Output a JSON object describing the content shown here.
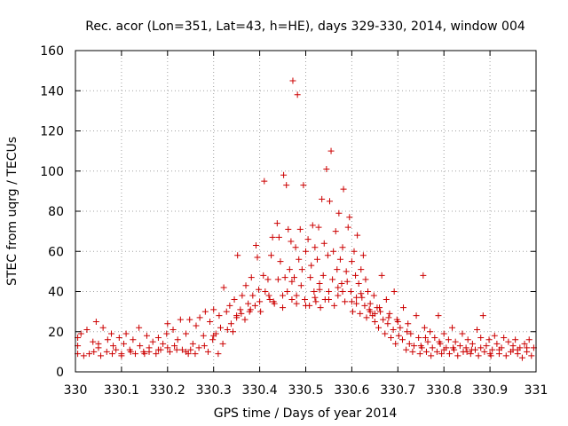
{
  "chart_data": {
    "type": "scatter",
    "title": "Rec. acor (Lon=351, Lat=43, h=HE), days 329-330, 2014, window 004",
    "xlabel": "GPS time / Days of year 2014",
    "ylabel": "STEC from uqrg / TECUs",
    "xlim": [
      330,
      331
    ],
    "ylim": [
      0,
      160
    ],
    "xticks": [
      330,
      330.1,
      330.2,
      330.3,
      330.4,
      330.5,
      330.6,
      330.7,
      330.8,
      330.9,
      331
    ],
    "xtick_labels": [
      "330",
      "330.1",
      "330.2",
      "330.3",
      "330.4",
      "330.5",
      "330.6",
      "330.7",
      "330.8",
      "330.9",
      "331"
    ],
    "yticks": [
      0,
      20,
      40,
      60,
      80,
      100,
      120,
      140,
      160
    ],
    "ytick_labels": [
      "0",
      "20",
      "40",
      "60",
      "80",
      "100",
      "120",
      "140",
      "160"
    ],
    "marker": "+",
    "color": "#cc0000",
    "grid": true,
    "series": [
      {
        "name": "STEC",
        "points": [
          [
            330.005,
            17
          ],
          [
            330.005,
            13
          ],
          [
            330.005,
            9
          ],
          [
            330.012,
            19
          ],
          [
            330.018,
            8
          ],
          [
            330.025,
            21
          ],
          [
            330.03,
            9
          ],
          [
            330.038,
            15
          ],
          [
            330.045,
            25
          ],
          [
            330.05,
            12
          ],
          [
            330.055,
            8
          ],
          [
            330.06,
            22
          ],
          [
            330.068,
            10
          ],
          [
            330.07,
            16
          ],
          [
            330.078,
            19
          ],
          [
            330.082,
            13
          ],
          [
            330.088,
            11
          ],
          [
            330.095,
            17
          ],
          [
            330.1,
            9
          ],
          [
            330.105,
            14
          ],
          [
            330.11,
            19
          ],
          [
            330.118,
            11
          ],
          [
            330.125,
            16
          ],
          [
            330.13,
            9
          ],
          [
            330.138,
            22
          ],
          [
            330.14,
            13
          ],
          [
            330.148,
            10
          ],
          [
            330.155,
            18
          ],
          [
            330.16,
            12
          ],
          [
            330.168,
            15
          ],
          [
            330.175,
            9
          ],
          [
            330.18,
            17
          ],
          [
            330.185,
            11
          ],
          [
            330.19,
            14
          ],
          [
            330.198,
            19
          ],
          [
            330.2,
            24
          ],
          [
            330.205,
            10
          ],
          [
            330.212,
            21
          ],
          [
            330.215,
            13
          ],
          [
            330.222,
            16
          ],
          [
            330.228,
            26
          ],
          [
            330.232,
            11
          ],
          [
            330.24,
            19
          ],
          [
            330.245,
            9
          ],
          [
            330.248,
            26
          ],
          [
            330.255,
            14
          ],
          [
            330.262,
            23
          ],
          [
            330.268,
            12
          ],
          [
            330.27,
            27
          ],
          [
            330.278,
            18
          ],
          [
            330.282,
            30
          ],
          [
            330.288,
            10
          ],
          [
            330.292,
            25
          ],
          [
            330.298,
            16
          ],
          [
            330.3,
            31
          ],
          [
            330.305,
            19
          ],
          [
            330.312,
            28
          ],
          [
            330.315,
            22
          ],
          [
            330.32,
            14
          ],
          [
            330.322,
            42
          ],
          [
            330.328,
            30
          ],
          [
            330.335,
            33
          ],
          [
            330.338,
            24
          ],
          [
            330.342,
            20
          ],
          [
            330.345,
            36
          ],
          [
            330.35,
            28
          ],
          [
            330.352,
            58
          ],
          [
            330.358,
            31
          ],
          [
            330.362,
            38
          ],
          [
            330.368,
            26
          ],
          [
            330.37,
            43
          ],
          [
            330.375,
            34
          ],
          [
            330.378,
            30
          ],
          [
            330.382,
            47
          ],
          [
            330.385,
            38
          ],
          [
            330.39,
            33
          ],
          [
            330.392,
            63
          ],
          [
            330.395,
            57
          ],
          [
            330.398,
            41
          ],
          [
            330.402,
            30
          ],
          [
            330.408,
            48
          ],
          [
            330.41,
            95
          ],
          [
            330.412,
            40
          ],
          [
            330.418,
            46
          ],
          [
            330.422,
            36
          ],
          [
            330.425,
            58
          ],
          [
            330.428,
            67
          ],
          [
            330.432,
            34
          ],
          [
            330.438,
            74
          ],
          [
            330.44,
            46
          ],
          [
            330.442,
            67
          ],
          [
            330.445,
            55
          ],
          [
            330.45,
            38
          ],
          [
            330.452,
            98
          ],
          [
            330.455,
            47
          ],
          [
            330.458,
            93
          ],
          [
            330.46,
            40
          ],
          [
            330.462,
            71
          ],
          [
            330.465,
            51
          ],
          [
            330.468,
            65
          ],
          [
            330.47,
            36
          ],
          [
            330.472,
            145
          ],
          [
            330.475,
            47
          ],
          [
            330.478,
            62
          ],
          [
            330.48,
            34
          ],
          [
            330.482,
            138
          ],
          [
            330.485,
            56
          ],
          [
            330.488,
            71
          ],
          [
            330.49,
            43
          ],
          [
            330.492,
            51
          ],
          [
            330.495,
            93
          ],
          [
            330.498,
            36
          ],
          [
            330.5,
            60
          ],
          [
            330.505,
            66
          ],
          [
            330.508,
            33
          ],
          [
            330.51,
            47
          ],
          [
            330.512,
            53
          ],
          [
            330.515,
            73
          ],
          [
            330.518,
            40
          ],
          [
            330.52,
            62
          ],
          [
            330.522,
            35
          ],
          [
            330.525,
            56
          ],
          [
            330.528,
            72
          ],
          [
            330.53,
            44
          ],
          [
            330.532,
            32
          ],
          [
            330.535,
            86
          ],
          [
            330.538,
            48
          ],
          [
            330.54,
            64
          ],
          [
            330.542,
            36
          ],
          [
            330.545,
            101
          ],
          [
            330.548,
            58
          ],
          [
            330.55,
            40
          ],
          [
            330.552,
            85
          ],
          [
            330.555,
            110
          ],
          [
            330.558,
            46
          ],
          [
            330.56,
            60
          ],
          [
            330.562,
            33
          ],
          [
            330.565,
            70
          ],
          [
            330.568,
            51
          ],
          [
            330.57,
            38
          ],
          [
            330.572,
            79
          ],
          [
            330.575,
            56
          ],
          [
            330.578,
            44
          ],
          [
            330.58,
            62
          ],
          [
            330.582,
            91
          ],
          [
            330.585,
            35
          ],
          [
            330.588,
            50
          ],
          [
            330.59,
            45
          ],
          [
            330.592,
            72
          ],
          [
            330.595,
            77
          ],
          [
            330.598,
            40
          ],
          [
            330.6,
            55
          ],
          [
            330.602,
            30
          ],
          [
            330.605,
            60
          ],
          [
            330.608,
            48
          ],
          [
            330.61,
            34
          ],
          [
            330.612,
            68
          ],
          [
            330.615,
            44
          ],
          [
            330.618,
            29
          ],
          [
            330.62,
            51
          ],
          [
            330.622,
            37
          ],
          [
            330.625,
            58
          ],
          [
            330.628,
            33
          ],
          [
            330.63,
            46
          ],
          [
            330.632,
            27
          ],
          [
            330.635,
            40
          ],
          [
            330.638,
            31
          ],
          [
            330.64,
            34
          ],
          [
            330.645,
            28
          ],
          [
            330.648,
            38
          ],
          [
            330.65,
            25
          ],
          [
            330.655,
            32
          ],
          [
            330.658,
            22
          ],
          [
            330.662,
            30
          ],
          [
            330.665,
            48
          ],
          [
            330.668,
            26
          ],
          [
            330.672,
            19
          ],
          [
            330.675,
            36
          ],
          [
            330.678,
            24
          ],
          [
            330.682,
            29
          ],
          [
            330.685,
            17
          ],
          [
            330.69,
            21
          ],
          [
            330.692,
            40
          ],
          [
            330.695,
            14
          ],
          [
            330.698,
            26
          ],
          [
            330.702,
            18
          ],
          [
            330.705,
            22
          ],
          [
            330.71,
            16
          ],
          [
            330.712,
            32
          ],
          [
            330.718,
            11
          ],
          [
            330.722,
            24
          ],
          [
            330.725,
            14
          ],
          [
            330.728,
            19
          ],
          [
            330.732,
            10
          ],
          [
            330.735,
            13
          ],
          [
            330.74,
            28
          ],
          [
            330.745,
            17
          ],
          [
            330.748,
            9
          ],
          [
            330.752,
            12
          ],
          [
            330.755,
            48
          ],
          [
            330.758,
            22
          ],
          [
            330.762,
            10
          ],
          [
            330.765,
            15
          ],
          [
            330.77,
            20
          ],
          [
            330.772,
            8
          ],
          [
            330.775,
            12
          ],
          [
            330.78,
            17
          ],
          [
            330.785,
            10
          ],
          [
            330.788,
            28
          ],
          [
            330.792,
            14
          ],
          [
            330.795,
            9
          ],
          [
            330.8,
            19
          ],
          [
            330.805,
            12
          ],
          [
            330.81,
            16
          ],
          [
            330.812,
            9
          ],
          [
            330.818,
            22
          ],
          [
            330.822,
            11
          ],
          [
            330.825,
            15
          ],
          [
            330.83,
            8
          ],
          [
            330.835,
            13
          ],
          [
            330.84,
            19
          ],
          [
            330.842,
            10
          ],
          [
            330.848,
            12
          ],
          [
            330.852,
            16
          ],
          [
            330.858,
            9
          ],
          [
            330.862,
            14
          ],
          [
            330.868,
            11
          ],
          [
            330.872,
            21
          ],
          [
            330.875,
            8
          ],
          [
            330.88,
            17
          ],
          [
            330.885,
            28
          ],
          [
            330.888,
            10
          ],
          [
            330.892,
            13
          ],
          [
            330.898,
            16
          ],
          [
            330.902,
            8
          ],
          [
            330.905,
            11
          ],
          [
            330.91,
            18
          ],
          [
            330.915,
            14
          ],
          [
            330.92,
            9
          ],
          [
            330.925,
            12
          ],
          [
            330.93,
            17
          ],
          [
            330.935,
            8
          ],
          [
            330.94,
            15
          ],
          [
            330.945,
            10
          ],
          [
            330.95,
            13
          ],
          [
            330.955,
            16
          ],
          [
            330.96,
            9
          ],
          [
            330.965,
            12
          ],
          [
            330.97,
            7
          ],
          [
            330.975,
            14
          ],
          [
            330.98,
            10
          ],
          [
            330.985,
            16
          ],
          [
            330.99,
            8
          ],
          [
            330.995,
            12
          ],
          [
            330.3,
            18
          ],
          [
            330.31,
            9
          ],
          [
            330.35,
            27
          ],
          [
            330.4,
            35
          ],
          [
            330.45,
            32
          ],
          [
            330.5,
            33
          ],
          [
            330.55,
            36
          ],
          [
            330.6,
            35
          ],
          [
            330.65,
            29
          ],
          [
            330.7,
            25
          ],
          [
            330.75,
            13
          ],
          [
            330.8,
            11
          ],
          [
            330.85,
            10
          ],
          [
            330.9,
            9
          ],
          [
            330.95,
            11
          ],
          [
            330.25,
            11
          ],
          [
            330.2,
            12
          ],
          [
            330.15,
            9
          ],
          [
            330.1,
            8
          ],
          [
            330.05,
            14
          ],
          [
            330.42,
            38
          ],
          [
            330.47,
            45
          ],
          [
            330.53,
            41
          ],
          [
            330.58,
            40
          ],
          [
            330.62,
            39
          ],
          [
            330.66,
            32
          ],
          [
            330.36,
            29
          ],
          [
            330.33,
            21
          ],
          [
            330.38,
            31
          ],
          [
            330.43,
            35
          ],
          [
            330.48,
            38
          ],
          [
            330.52,
            37
          ],
          [
            330.57,
            42
          ],
          [
            330.61,
            37
          ],
          [
            330.64,
            30
          ],
          [
            330.68,
            27
          ],
          [
            330.72,
            20
          ],
          [
            330.76,
            17
          ],
          [
            330.79,
            15
          ],
          [
            330.82,
            12
          ],
          [
            330.86,
            11
          ],
          [
            330.88,
            12
          ],
          [
            330.92,
            11
          ],
          [
            330.96,
            11
          ],
          [
            330.98,
            12
          ],
          [
            330.04,
            10
          ],
          [
            330.08,
            9
          ],
          [
            330.12,
            10
          ],
          [
            330.16,
            10
          ],
          [
            330.18,
            11
          ],
          [
            330.22,
            11
          ],
          [
            330.24,
            10
          ],
          [
            330.26,
            9
          ],
          [
            330.28,
            13
          ]
        ]
      }
    ]
  }
}
